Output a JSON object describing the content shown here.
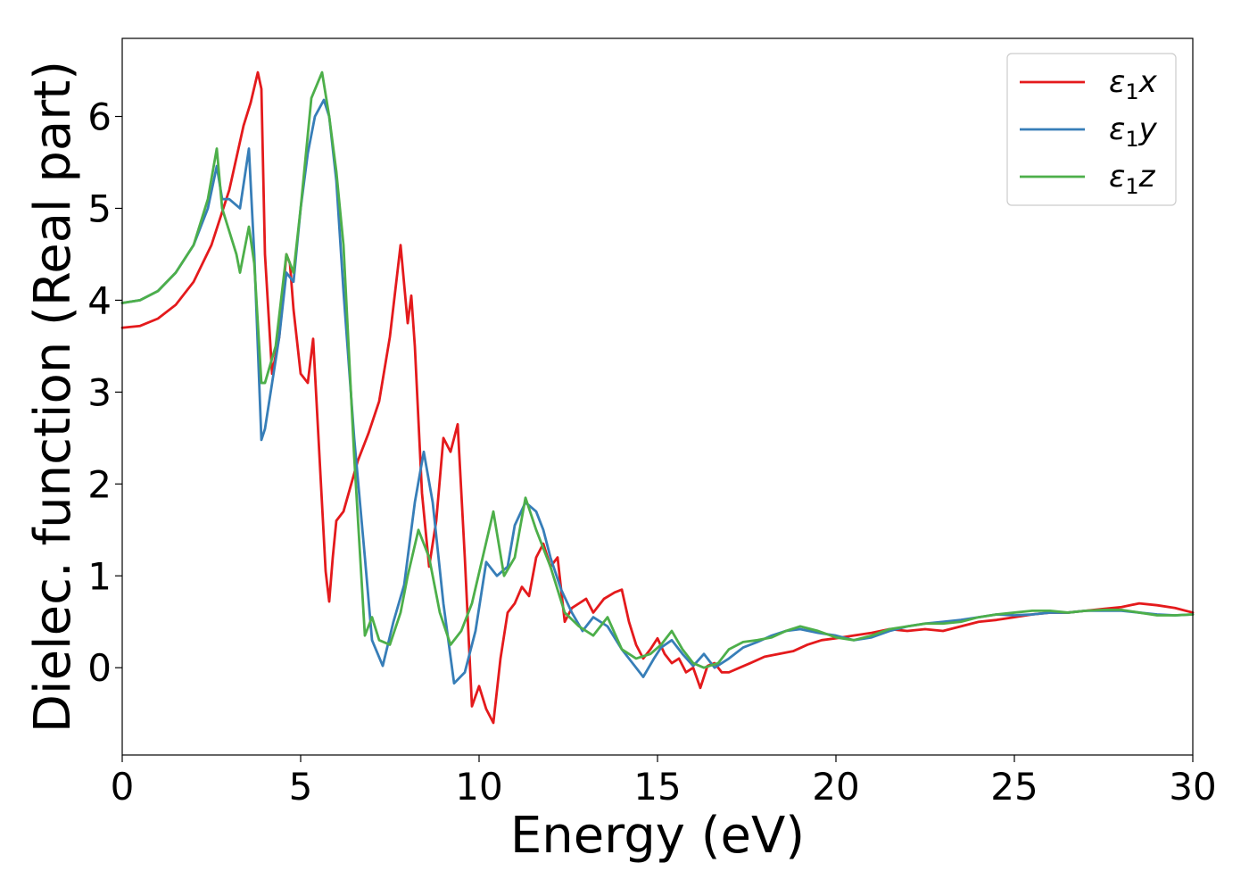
{
  "chart_data": {
    "type": "line",
    "title": "",
    "xlabel": "Energy (eV)",
    "ylabel": "Dielec. function (Real part)",
    "xlim": [
      0,
      30
    ],
    "ylim": [
      -0.95,
      6.85
    ],
    "xticks": [
      0,
      5,
      10,
      15,
      20,
      25,
      30
    ],
    "yticks": [
      0,
      1,
      2,
      3,
      4,
      5,
      6
    ],
    "grid": false,
    "legend_position": "top-right",
    "series": [
      {
        "name": "ε₁x",
        "legend_base": "ε",
        "legend_sub": "1",
        "legend_suffix": "x",
        "color": "#e41a1c",
        "x": [
          0,
          0.5,
          1,
          1.5,
          2,
          2.5,
          3,
          3.4,
          3.6,
          3.8,
          3.9,
          4,
          4.2,
          4.4,
          4.6,
          4.7,
          4.8,
          5,
          5.2,
          5.35,
          5.5,
          5.7,
          5.8,
          5.9,
          6,
          6.2,
          6.6,
          6.9,
          7.2,
          7.5,
          7.8,
          8,
          8.1,
          8.2,
          8.4,
          8.6,
          8.8,
          9,
          9.2,
          9.4,
          9.6,
          9.8,
          10,
          10.2,
          10.4,
          10.6,
          10.8,
          11,
          11.2,
          11.4,
          11.6,
          11.8,
          12,
          12.2,
          12.4,
          12.6,
          12.8,
          13,
          13.2,
          13.5,
          13.8,
          14,
          14.2,
          14.4,
          14.6,
          14.8,
          15,
          15.2,
          15.4,
          15.6,
          15.8,
          16,
          16.2,
          16.4,
          16.6,
          16.8,
          17,
          17.3,
          17.6,
          18,
          18.4,
          18.8,
          19.2,
          19.6,
          20,
          20.5,
          21,
          21.5,
          22,
          22.5,
          23,
          23.5,
          24,
          24.5,
          25,
          25.5,
          26,
          26.5,
          27,
          27.5,
          28,
          28.5,
          29,
          29.5,
          30
        ],
        "y": [
          3.7,
          3.72,
          3.8,
          3.95,
          4.2,
          4.6,
          5.2,
          5.9,
          6.15,
          6.48,
          6.3,
          4.5,
          3.2,
          3.6,
          4.5,
          4.4,
          3.9,
          3.2,
          3.1,
          3.58,
          2.5,
          1.05,
          0.72,
          1.2,
          1.6,
          1.7,
          2.25,
          2.55,
          2.9,
          3.6,
          4.6,
          3.75,
          4.05,
          3.5,
          1.9,
          1.1,
          1.6,
          2.5,
          2.35,
          2.65,
          1.2,
          -0.42,
          -0.2,
          -0.45,
          -0.6,
          0.1,
          0.6,
          0.7,
          0.88,
          0.78,
          1.2,
          1.35,
          1.1,
          1.2,
          0.5,
          0.65,
          0.7,
          0.75,
          0.6,
          0.75,
          0.82,
          0.85,
          0.5,
          0.25,
          0.1,
          0.2,
          0.32,
          0.15,
          0.05,
          0.1,
          -0.05,
          0.0,
          -0.22,
          0.02,
          0.05,
          -0.05,
          -0.05,
          0.0,
          0.05,
          0.12,
          0.15,
          0.18,
          0.25,
          0.3,
          0.32,
          0.35,
          0.38,
          0.42,
          0.4,
          0.42,
          0.4,
          0.45,
          0.5,
          0.52,
          0.55,
          0.58,
          0.6,
          0.6,
          0.62,
          0.64,
          0.66,
          0.7,
          0.68,
          0.65,
          0.6
        ]
      },
      {
        "name": "ε₁y",
        "legend_base": "ε",
        "legend_sub": "1",
        "legend_suffix": "y",
        "color": "#377eb8",
        "x": [
          0,
          0.5,
          1,
          1.5,
          2,
          2.4,
          2.65,
          2.8,
          3,
          3.3,
          3.55,
          3.7,
          3.9,
          4,
          4.2,
          4.4,
          4.6,
          4.8,
          5,
          5.2,
          5.4,
          5.65,
          5.8,
          6,
          6.2,
          6.5,
          6.8,
          7,
          7.3,
          7.6,
          7.9,
          8.2,
          8.45,
          8.7,
          9,
          9.3,
          9.6,
          9.9,
          10.2,
          10.5,
          10.8,
          11,
          11.3,
          11.6,
          11.8,
          12,
          12.3,
          12.6,
          12.9,
          13.2,
          13.6,
          14,
          14.3,
          14.6,
          14.9,
          15.1,
          15.4,
          15.7,
          16,
          16.3,
          16.6,
          17,
          17.4,
          17.8,
          18.2,
          18.6,
          19,
          19.5,
          20,
          20.5,
          21,
          21.5,
          22,
          22.5,
          23,
          23.5,
          24,
          24.5,
          25,
          25.5,
          26,
          26.5,
          27,
          27.5,
          28,
          28.5,
          29,
          29.5,
          30
        ],
        "y": [
          3.97,
          4.0,
          4.1,
          4.3,
          4.6,
          5.0,
          5.46,
          5.1,
          5.1,
          5.0,
          5.65,
          4.5,
          2.48,
          2.6,
          3.1,
          3.6,
          4.3,
          4.2,
          5.0,
          5.6,
          6.0,
          6.18,
          6.0,
          5.3,
          4.1,
          2.5,
          1.2,
          0.3,
          0.02,
          0.5,
          0.9,
          1.8,
          2.35,
          1.8,
          0.7,
          -0.17,
          -0.05,
          0.4,
          1.15,
          1.0,
          1.1,
          1.55,
          1.8,
          1.7,
          1.5,
          1.2,
          0.85,
          0.6,
          0.4,
          0.55,
          0.45,
          0.2,
          0.05,
          -0.1,
          0.1,
          0.22,
          0.3,
          0.15,
          0.02,
          0.15,
          0.0,
          0.1,
          0.22,
          0.28,
          0.35,
          0.4,
          0.42,
          0.38,
          0.35,
          0.3,
          0.33,
          0.4,
          0.45,
          0.48,
          0.5,
          0.52,
          0.55,
          0.58,
          0.57,
          0.58,
          0.6,
          0.6,
          0.62,
          0.62,
          0.62,
          0.6,
          0.58,
          0.57,
          0.58
        ]
      },
      {
        "name": "ε₁z",
        "legend_base": "ε",
        "legend_sub": "1",
        "legend_suffix": "z",
        "color": "#4daf4a",
        "x": [
          0,
          0.5,
          1,
          1.5,
          2,
          2.4,
          2.65,
          2.8,
          3,
          3.2,
          3.3,
          3.55,
          3.7,
          3.9,
          4,
          4.3,
          4.6,
          4.8,
          5,
          5.3,
          5.6,
          5.8,
          6,
          6.2,
          6.5,
          6.8,
          7,
          7.2,
          7.5,
          7.8,
          8.0,
          8.3,
          8.6,
          8.9,
          9.2,
          9.5,
          9.8,
          10.1,
          10.4,
          10.7,
          11.0,
          11.3,
          11.6,
          12.0,
          12.4,
          12.8,
          13.2,
          13.6,
          14.0,
          14.4,
          14.8,
          15.1,
          15.4,
          15.7,
          16.0,
          16.3,
          16.7,
          17.0,
          17.4,
          17.8,
          18.2,
          18.6,
          19,
          19.5,
          20,
          20.5,
          21,
          21.5,
          22,
          22.5,
          23,
          23.5,
          24,
          24.5,
          25,
          25.5,
          26,
          26.5,
          27,
          27.5,
          28,
          28.5,
          29,
          29.5,
          30
        ],
        "y": [
          3.97,
          4.0,
          4.1,
          4.3,
          4.6,
          5.1,
          5.65,
          5.0,
          4.75,
          4.5,
          4.3,
          4.8,
          4.4,
          3.1,
          3.1,
          3.5,
          4.5,
          4.3,
          5.0,
          6.2,
          6.48,
          6.0,
          5.4,
          4.6,
          2.3,
          0.35,
          0.55,
          0.3,
          0.25,
          0.6,
          1.0,
          1.5,
          1.2,
          0.6,
          0.25,
          0.4,
          0.7,
          1.2,
          1.7,
          1.0,
          1.2,
          1.85,
          1.5,
          1.1,
          0.6,
          0.45,
          0.35,
          0.55,
          0.2,
          0.1,
          0.15,
          0.25,
          0.4,
          0.2,
          0.05,
          0.0,
          0.05,
          0.2,
          0.28,
          0.3,
          0.33,
          0.4,
          0.45,
          0.4,
          0.33,
          0.3,
          0.35,
          0.42,
          0.45,
          0.48,
          0.48,
          0.5,
          0.55,
          0.58,
          0.6,
          0.62,
          0.62,
          0.6,
          0.62,
          0.63,
          0.63,
          0.6,
          0.57,
          0.57,
          0.58
        ]
      }
    ]
  }
}
